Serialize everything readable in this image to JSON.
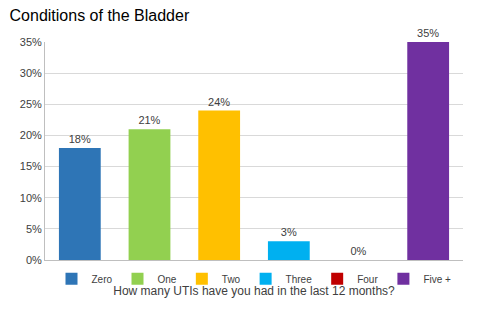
{
  "chart_data": {
    "type": "bar",
    "title": "Conditions of the Bladder",
    "x_label": "How many UTIs have you had in the last 12 months?",
    "categories": [
      "Zero",
      "One",
      "Two",
      "Three",
      "Four",
      "Five +"
    ],
    "values": [
      18,
      21,
      24,
      3,
      0,
      35
    ],
    "value_labels": [
      "18%",
      "21%",
      "24%",
      "3%",
      "0%",
      "35%"
    ],
    "colors": [
      "#2e75b6",
      "#92d050",
      "#ffc000",
      "#00b0f0",
      "#c00000",
      "#7030a0"
    ],
    "ylim": [
      0,
      35
    ],
    "yticks": [
      {
        "value": 0,
        "label": "0%"
      },
      {
        "value": 5,
        "label": "5%"
      },
      {
        "value": 10,
        "label": "10%"
      },
      {
        "value": 15,
        "label": "15%"
      },
      {
        "value": 20,
        "label": "20%"
      },
      {
        "value": 25,
        "label": "25%"
      },
      {
        "value": 30,
        "label": "30%"
      },
      {
        "value": 35,
        "label": "35%"
      }
    ],
    "grid": true,
    "legend": "bottom",
    "data_labels": true,
    "tick_labels": "y"
  }
}
